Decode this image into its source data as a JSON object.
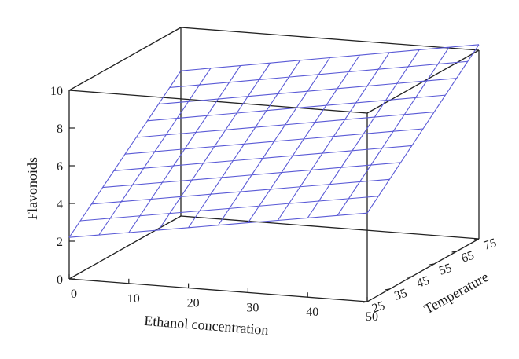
{
  "chart_data": {
    "type": "surface",
    "xlabel": "Ethanol concentration",
    "ylabel": "Temperature",
    "zlabel": "Flavonoids",
    "x_ticks": [
      0,
      10,
      20,
      30,
      40,
      50
    ],
    "y_ticks": [
      25,
      35,
      45,
      55,
      65,
      75
    ],
    "z_ticks": [
      0,
      2,
      4,
      6,
      8,
      10
    ],
    "xlim": [
      0,
      50
    ],
    "ylim": [
      25,
      75
    ],
    "zlim": [
      0,
      10
    ],
    "surface": {
      "x_grid": [
        0,
        5,
        10,
        15,
        20,
        25,
        30,
        35,
        40,
        45,
        50
      ],
      "y_grid": [
        25,
        30,
        35,
        40,
        45,
        50,
        55,
        60,
        65,
        70,
        75
      ],
      "corners": {
        "x0_y25": 2.2,
        "x50_y25": 4.7,
        "x0_y75": 7.7,
        "x50_y75": 10.3
      }
    },
    "line_color": "#5a5ad6",
    "frame_color": "#222222"
  }
}
